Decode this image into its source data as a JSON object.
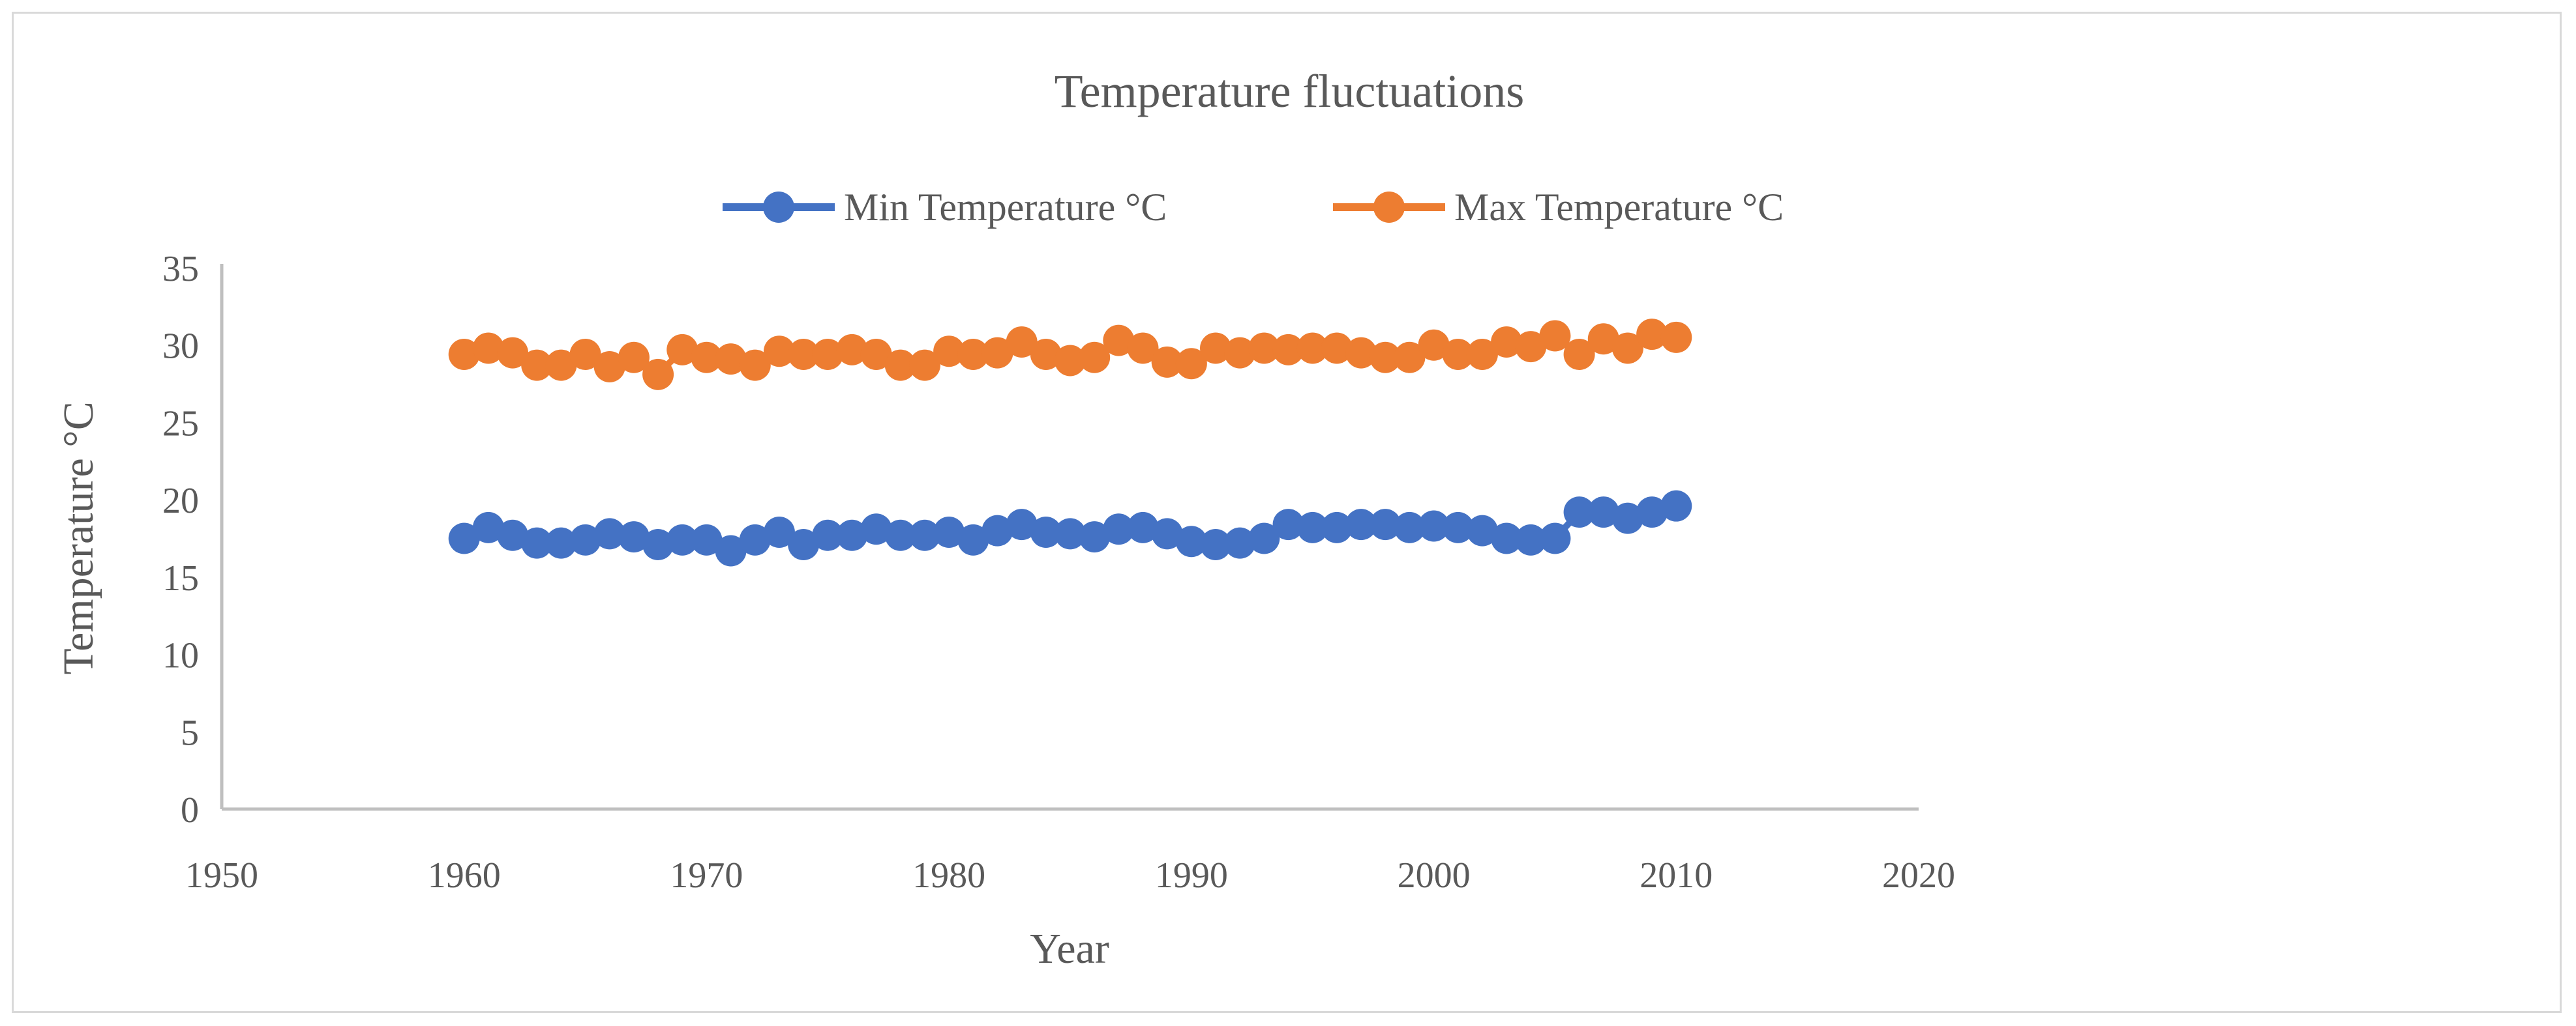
{
  "chart_data": {
    "type": "line",
    "title": "Temperature fluctuations",
    "xlabel": "Year",
    "ylabel": "Temperature °C",
    "xlim": [
      1950,
      2020
    ],
    "ylim": [
      0,
      35
    ],
    "x_ticks": [
      1950,
      1960,
      1970,
      1980,
      1990,
      2000,
      2010,
      2020
    ],
    "y_ticks": [
      0,
      5,
      10,
      15,
      20,
      25,
      30,
      35
    ],
    "grid": false,
    "legend": "top",
    "x": [
      1960,
      1961,
      1962,
      1963,
      1964,
      1965,
      1966,
      1967,
      1968,
      1969,
      1970,
      1971,
      1972,
      1973,
      1974,
      1975,
      1976,
      1977,
      1978,
      1979,
      1980,
      1981,
      1982,
      1983,
      1984,
      1985,
      1986,
      1987,
      1988,
      1989,
      1990,
      1991,
      1992,
      1993,
      1994,
      1995,
      1996,
      1997,
      1998,
      1999,
      2000,
      2001,
      2002,
      2003,
      2004,
      2005,
      2006,
      2007,
      2008,
      2009,
      2010
    ],
    "series": [
      {
        "name": "Min Temperature °C",
        "color": "#4472c4",
        "values": [
          17.5,
          18.2,
          17.7,
          17.2,
          17.2,
          17.4,
          17.8,
          17.6,
          17.1,
          17.4,
          17.4,
          16.7,
          17.4,
          17.9,
          17.1,
          17.7,
          17.7,
          18.1,
          17.7,
          17.7,
          17.9,
          17.4,
          18.0,
          18.4,
          17.9,
          17.8,
          17.6,
          18.1,
          18.2,
          17.8,
          17.3,
          17.1,
          17.2,
          17.5,
          18.4,
          18.2,
          18.2,
          18.4,
          18.4,
          18.2,
          18.3,
          18.2,
          18.0,
          17.5,
          17.4,
          17.5,
          19.2,
          19.2,
          18.8,
          19.2,
          19.6
        ]
      },
      {
        "name": "Max Temperature °C",
        "color": "#ed7d31",
        "values": [
          29.4,
          29.8,
          29.5,
          28.7,
          28.7,
          29.4,
          28.6,
          29.2,
          28.1,
          29.7,
          29.2,
          29.1,
          28.7,
          29.6,
          29.4,
          29.4,
          29.7,
          29.4,
          28.7,
          28.7,
          29.6,
          29.4,
          29.5,
          30.2,
          29.4,
          29.0,
          29.2,
          30.3,
          29.8,
          28.9,
          28.8,
          29.8,
          29.5,
          29.8,
          29.7,
          29.8,
          29.8,
          29.5,
          29.2,
          29.2,
          30.0,
          29.4,
          29.4,
          30.2,
          29.9,
          30.6,
          29.4,
          30.4,
          29.8,
          30.7,
          30.5
        ]
      }
    ]
  }
}
